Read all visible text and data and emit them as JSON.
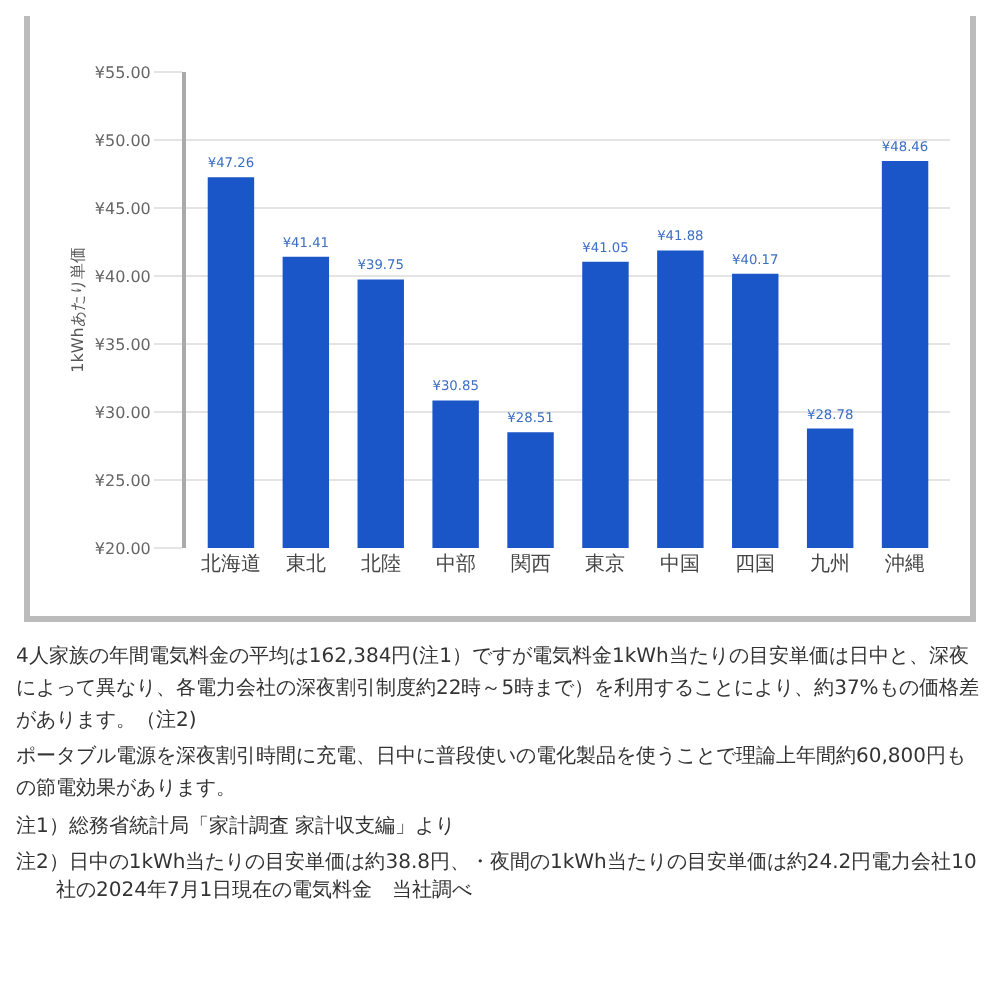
{
  "chart_data": {
    "type": "bar",
    "ylabel": "1kWhあたり単価",
    "categories": [
      "北海道",
      "東北",
      "北陸",
      "中部",
      "関西",
      "東京",
      "中国",
      "四国",
      "九州",
      "沖縄"
    ],
    "values": [
      47.26,
      41.41,
      39.75,
      30.85,
      28.51,
      41.05,
      41.88,
      40.17,
      28.78,
      48.46
    ],
    "value_labels": [
      "¥47.26",
      "¥41.41",
      "¥39.75",
      "¥30.85",
      "¥28.51",
      "¥41.05",
      "¥41.88",
      "¥40.17",
      "¥28.78",
      "¥48.46"
    ],
    "color": "#1a56c8",
    "ylim": [
      20,
      55
    ],
    "yticks": [
      {
        "value": 20,
        "label": "¥20.00"
      },
      {
        "value": 25,
        "label": "¥25.00"
      },
      {
        "value": 30,
        "label": "¥30.00"
      },
      {
        "value": 35,
        "label": "¥35.00"
      },
      {
        "value": 40,
        "label": "¥40.00"
      },
      {
        "value": 45,
        "label": "¥45.00"
      },
      {
        "value": 50,
        "label": "¥50.00"
      },
      {
        "value": 55,
        "label": "¥55.00"
      }
    ],
    "grid": "y",
    "legend": false,
    "annotations": [
      "4人家族の年間電気料金の平均は162,384円(注1）ですが電気料金1kWh当たりの目安単価は日中と、深夜によって異なり、各電力会社の深夜割引制度約22時～5時まで）を利用することにより、約37%もの価格差があります。（注2)",
      "ポータブル電源を深夜割引時間に充電、日中に普段使いの電化製品を使うことで理論上年間約60,800円もの節電効果があります。",
      "注1）総務省統計局「家計調査 家計収支編」より",
      "注2）日中の1kWh当たりの目安単価は約38.8円、・夜間の1kWh当たりの目安単価は約24.2円電力会社10社の2024年7月1日現在の電気料金　当社調べ"
    ]
  }
}
